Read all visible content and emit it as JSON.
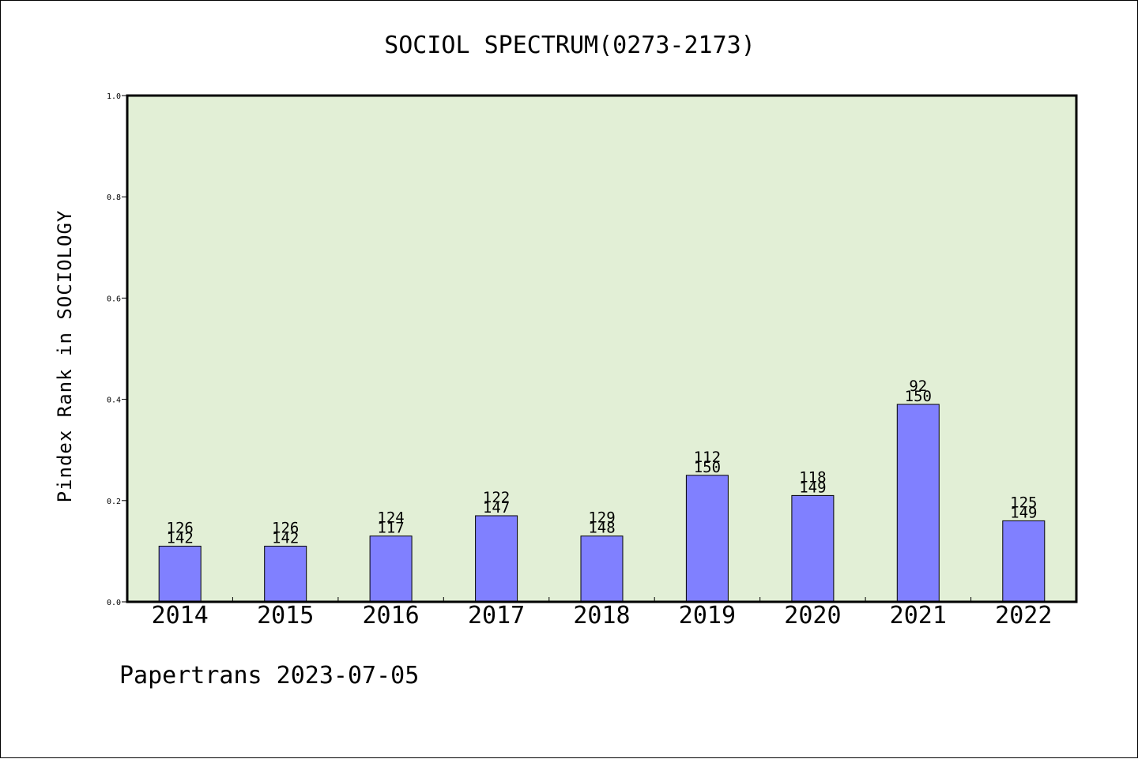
{
  "colors": {
    "plot_background": "#e2efd6",
    "bar_fill": "#8080ff",
    "bar_stroke": "#000000",
    "axis": "#000000"
  },
  "chart_data": {
    "type": "bar",
    "title": "SOCIOL SPECTRUM(0273-2173)",
    "xlabel": "",
    "ylabel": "Pindex Rank in SOCIOLOGY",
    "ylim": [
      0,
      1.0
    ],
    "yticks": [
      "0.0",
      "0.2",
      "0.4",
      "0.6",
      "0.8",
      "1.0"
    ],
    "categories": [
      "2014",
      "2015",
      "2016",
      "2017",
      "2018",
      "2019",
      "2020",
      "2021",
      "2022"
    ],
    "values": [
      0.11,
      0.11,
      0.13,
      0.17,
      0.13,
      0.25,
      0.21,
      0.39,
      0.16
    ],
    "labels_top": [
      "126",
      "126",
      "124",
      "122",
      "129",
      "112",
      "118",
      "92",
      "125"
    ],
    "labels_bottom": [
      "142",
      "142",
      "117",
      "147",
      "148",
      "150",
      "149",
      "150",
      "149"
    ],
    "grid": false,
    "legend": "none"
  },
  "footer": {
    "text": "Papertrans 2023-07-05"
  }
}
